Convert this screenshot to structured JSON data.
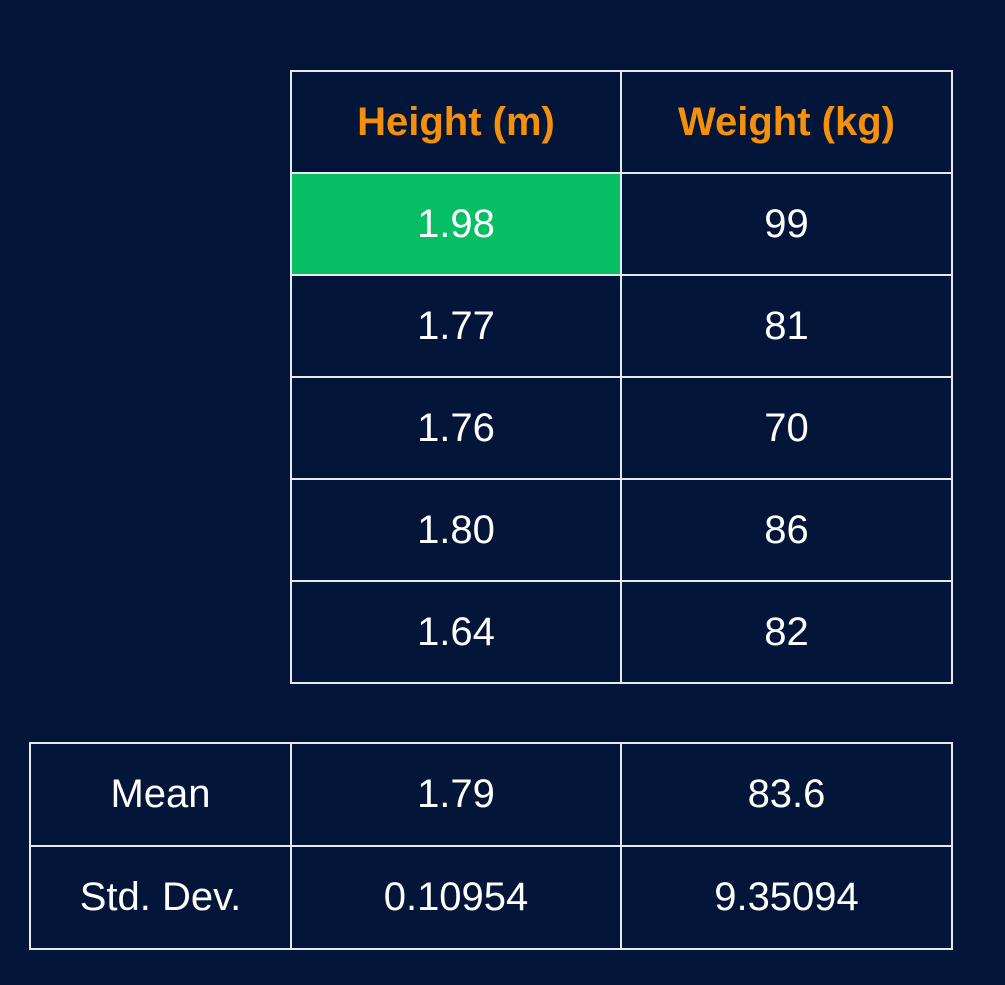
{
  "colors": {
    "background": "#031539",
    "header_text": "#f5900b",
    "highlight_cell": "#06be63",
    "border": "#e6e9ef",
    "text": "#ffffff"
  },
  "data_table": {
    "headers": [
      "Height (m)",
      "Weight (kg)"
    ],
    "rows": [
      {
        "height": "1.98",
        "weight": "99",
        "highlighted": true
      },
      {
        "height": "1.77",
        "weight": "81"
      },
      {
        "height": "1.76",
        "weight": "70"
      },
      {
        "height": "1.80",
        "weight": "86"
      },
      {
        "height": "1.64",
        "weight": "82"
      }
    ]
  },
  "stats_table": {
    "rows": [
      {
        "label": "Mean",
        "height": "1.79",
        "weight": "83.6"
      },
      {
        "label": "Std. Dev.",
        "height": "0.10954",
        "weight": "9.35094"
      }
    ]
  }
}
